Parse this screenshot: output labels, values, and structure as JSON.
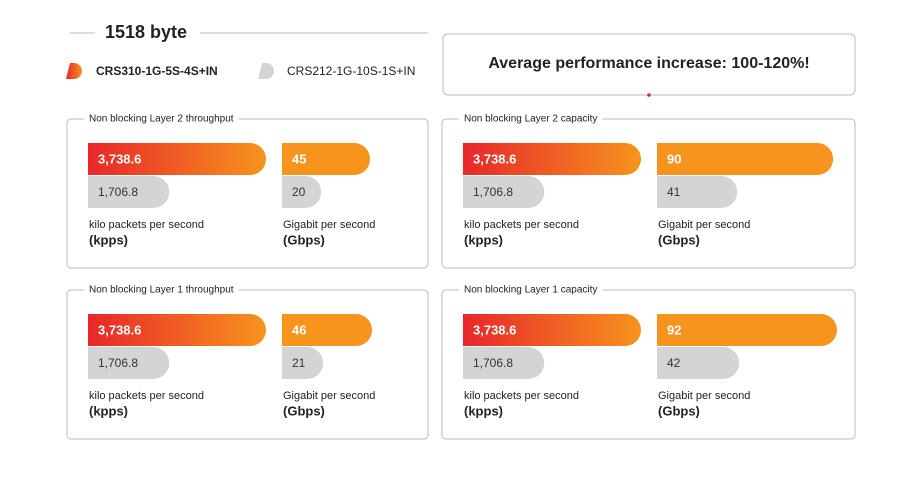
{
  "title": "1518 byte",
  "legend": [
    {
      "name": "CRS310-1G-5S-4S+IN",
      "color": "#e5262a"
    },
    {
      "name": "CRS212-1G-10S-1S+IN",
      "color": "#d4d4d4"
    }
  ],
  "callout": "Average performance increase: 100-120%!",
  "bar_colors": {
    "gradient_start": "#e8262a",
    "gradient_end": "#f7941d",
    "solid": "#f7941d",
    "secondary": "#d4d4d4"
  },
  "panels": [
    {
      "title": "Non blocking Layer 2 throughput",
      "metrics": [
        {
          "unit": "kilo packets per second",
          "unit_abbr": "(kpps)",
          "values": [
            3738.6,
            1706.8
          ],
          "value_labels": [
            "3,738.6",
            "1,706.8"
          ]
        },
        {
          "unit": "Gigabit per second",
          "unit_abbr": "(Gbps)",
          "values": [
            45,
            20
          ]
        }
      ]
    },
    {
      "title": "Non blocking Layer 2 capacity",
      "metrics": [
        {
          "unit": "kilo packets per second",
          "unit_abbr": "(kpps)",
          "values": [
            3738.6,
            1706.8
          ],
          "value_labels": [
            "3,738.6",
            "1,706.8"
          ]
        },
        {
          "unit": "Gigabit per second",
          "unit_abbr": "(Gbps)",
          "values": [
            90,
            41
          ]
        }
      ]
    },
    {
      "title": "Non blocking Layer 1 throughput",
      "metrics": [
        {
          "unit": "kilo packets per second",
          "unit_abbr": "(kpps)",
          "values": [
            3738.6,
            1706.8
          ],
          "value_labels": [
            "3,738.6",
            "1,706.8"
          ]
        },
        {
          "unit": "Gigabit per second",
          "unit_abbr": "(Gbps)",
          "values": [
            46,
            21
          ]
        }
      ]
    },
    {
      "title": "Non blocking Layer 1 capacity",
      "metrics": [
        {
          "unit": "kilo packets per second",
          "unit_abbr": "(kpps)",
          "values": [
            3738.6,
            1706.8
          ],
          "value_labels": [
            "3,738.6",
            "1,706.8"
          ]
        },
        {
          "unit": "Gigabit per second",
          "unit_abbr": "(Gbps)",
          "values": [
            92,
            42
          ]
        }
      ]
    }
  ]
}
